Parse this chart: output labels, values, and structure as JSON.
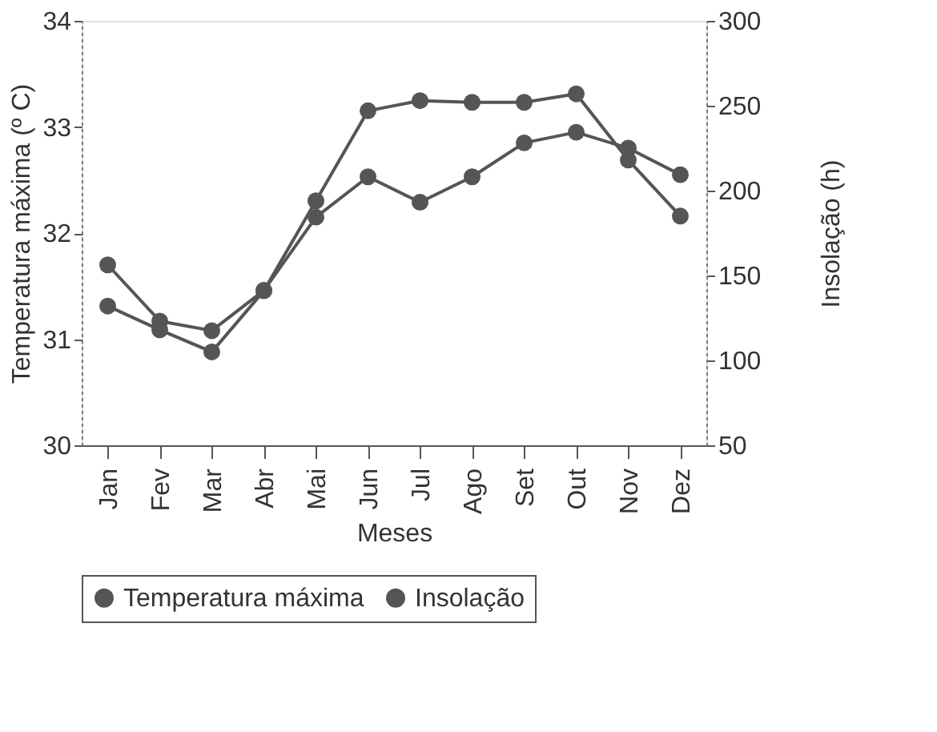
{
  "chart_data": {
    "type": "line",
    "xlabel": "Meses",
    "ylabel": "Temperatura máxima (º C)",
    "y2label": "Insolação (h)",
    "categories": [
      "Jan",
      "Fev",
      "Mar",
      "Abr",
      "Mai",
      "Jun",
      "Jul",
      "Ago",
      "Set",
      "Out",
      "Nov",
      "Dez"
    ],
    "series": [
      {
        "name": "Temperatura máxima",
        "color": "#555555",
        "values": [
          31.7,
          31.17,
          31.08,
          31.46,
          32.15,
          32.53,
          32.29,
          32.53,
          32.85,
          32.95,
          32.8,
          32.55
        ]
      },
      {
        "name": "Insolação",
        "color": "#555555",
        "axis": "y2",
        "values": [
          132,
          118,
          105,
          141,
          194,
          247,
          253,
          252,
          252,
          257,
          218,
          185
        ]
      }
    ],
    "ylim": [
      30,
      34
    ],
    "yticks": [
      30,
      31,
      32,
      33,
      34
    ],
    "y2lim": [
      50,
      300
    ],
    "y2ticks": [
      50,
      100,
      150,
      200,
      250,
      300
    ],
    "grid": false,
    "legend": "bottom",
    "marker": "circle",
    "line_style": "solid"
  }
}
